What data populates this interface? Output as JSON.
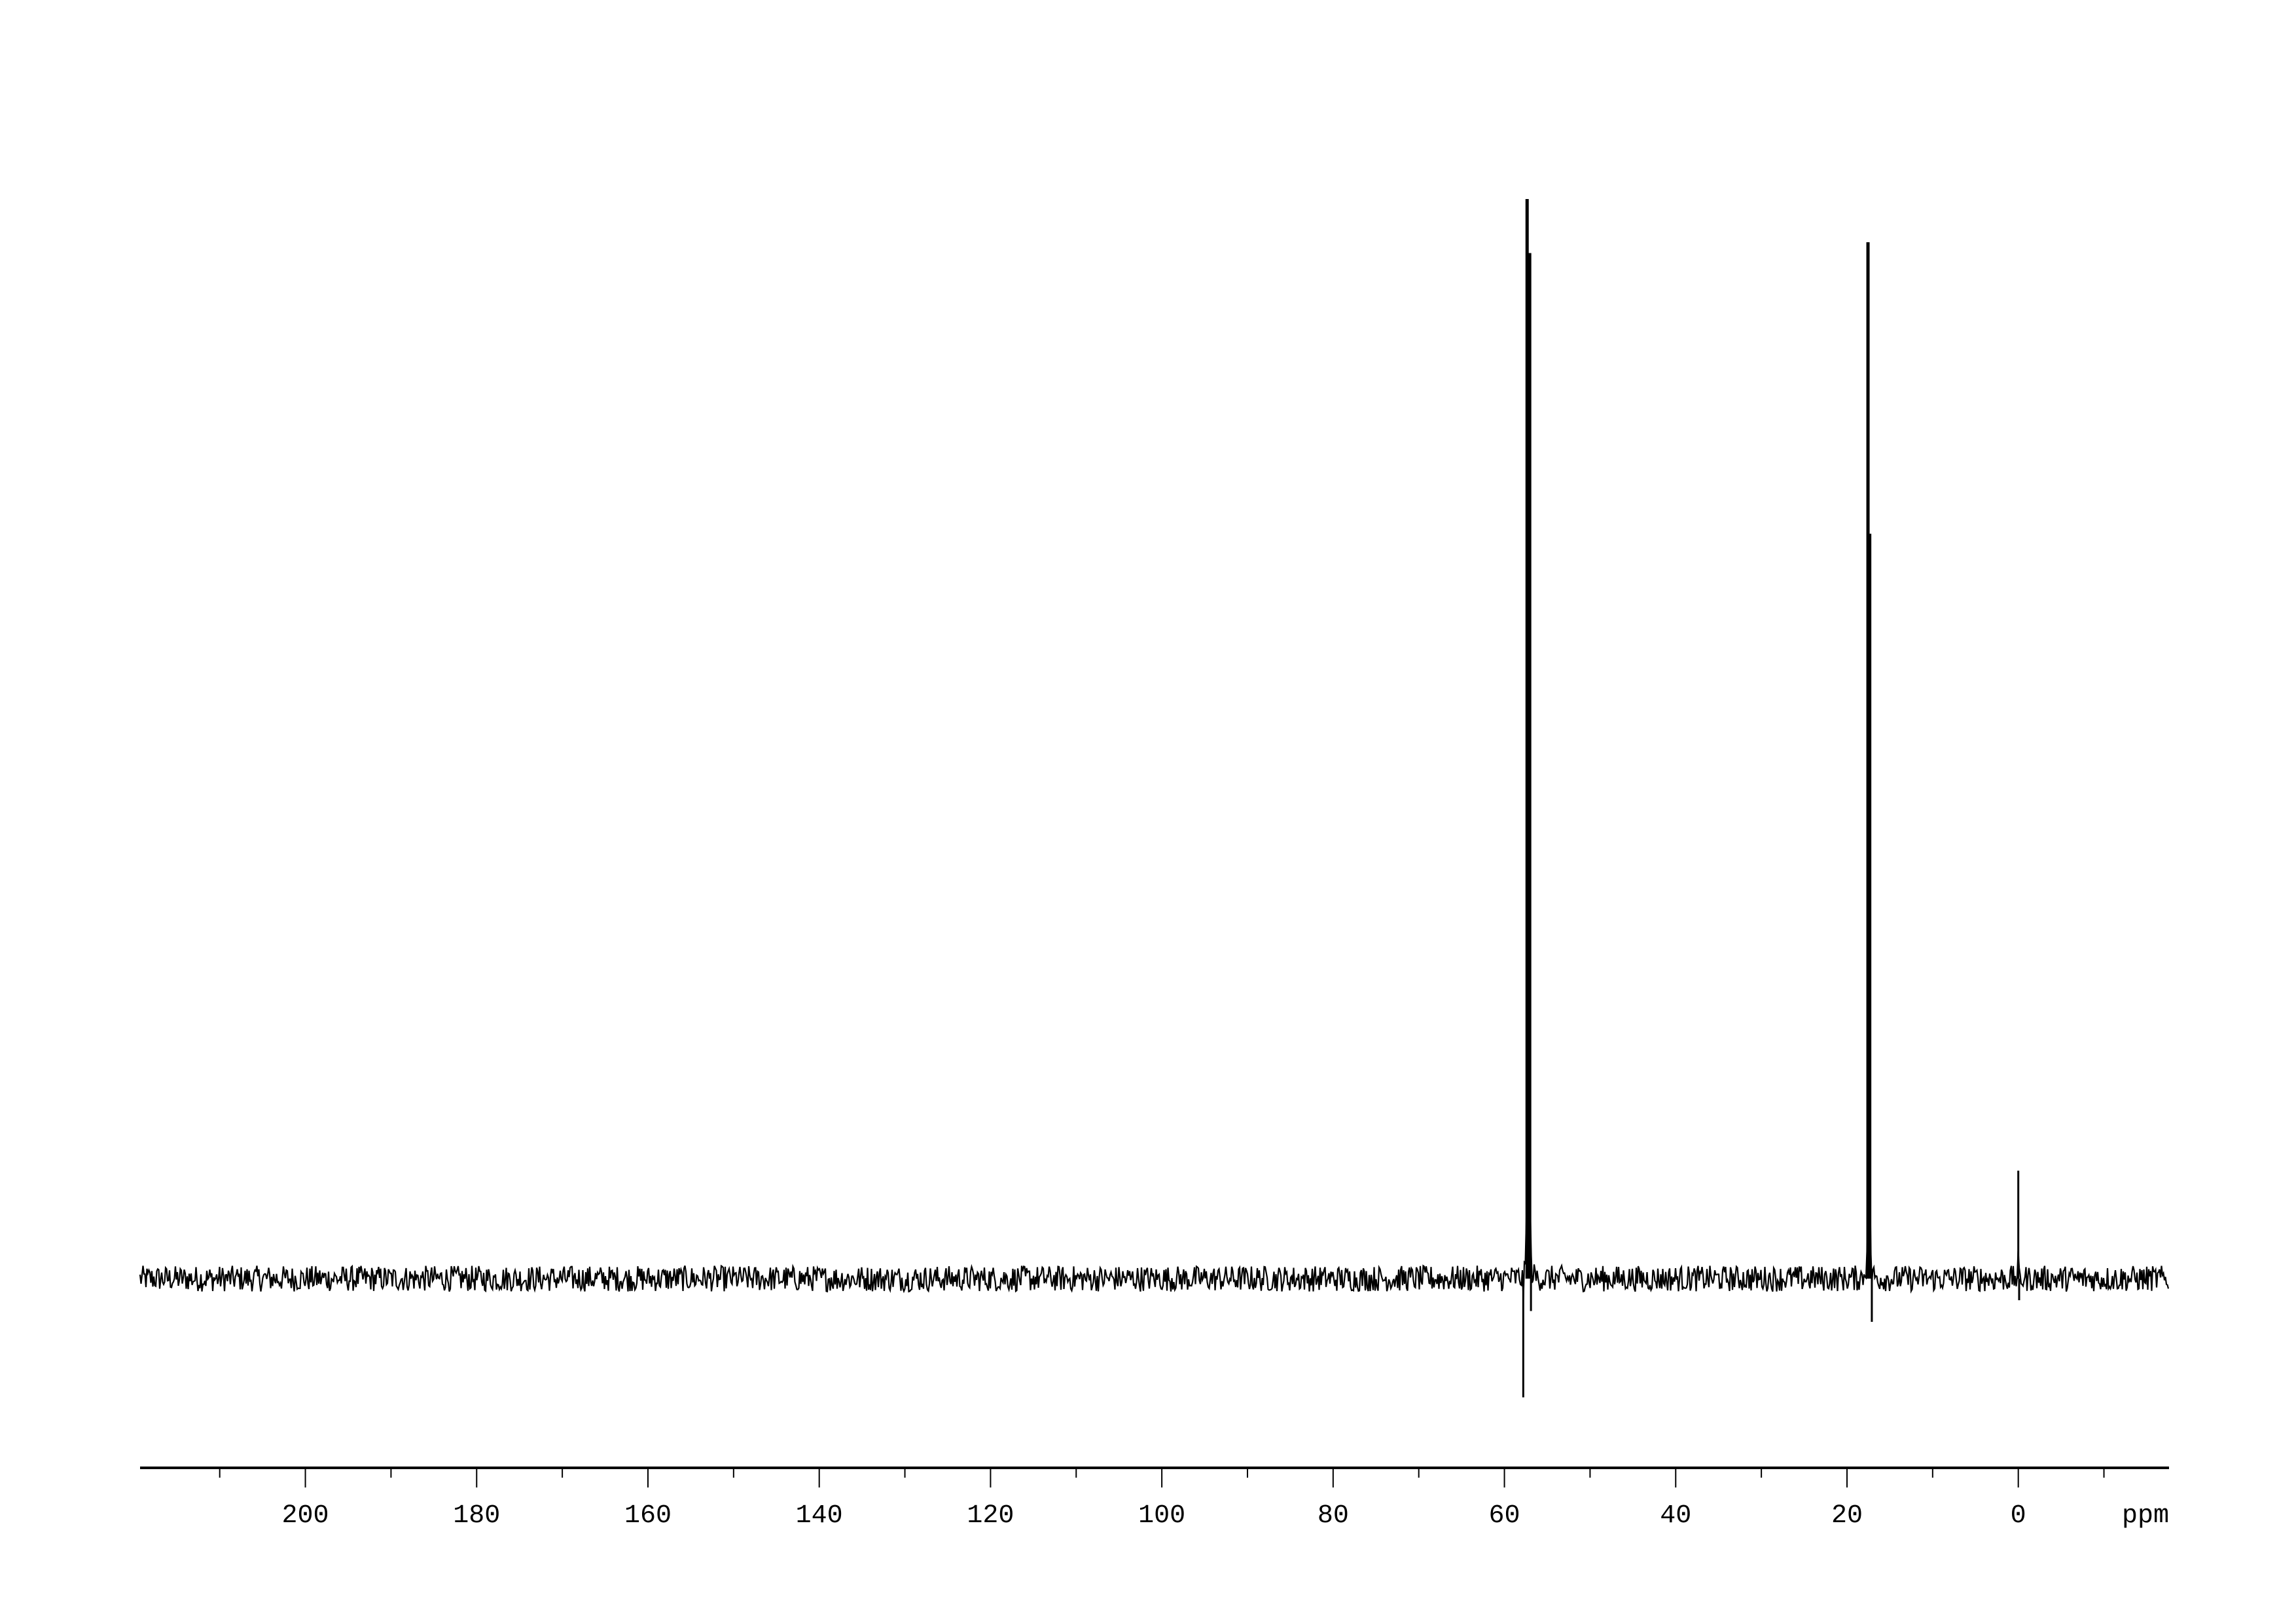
{
  "chart_data": {
    "type": "line",
    "title": "",
    "xlabel": "ppm",
    "ylabel": "",
    "x_reversed": true,
    "xlim": [
      219.3,
      -17.6
    ],
    "x_ticks_major": [
      200,
      180,
      160,
      140,
      120,
      100,
      80,
      60,
      40,
      20,
      0
    ],
    "x_ticks_minor": [
      210,
      190,
      170,
      150,
      130,
      110,
      90,
      70,
      50,
      30,
      10,
      -10
    ],
    "tick_labels": [
      "200",
      "180",
      "160",
      "140",
      "120",
      "100",
      "80",
      "60",
      "40",
      "20",
      "0"
    ],
    "grid": false,
    "line_color": "#000000",
    "baseline_noise_relative": 0.012,
    "peaks": [
      {
        "ppm": 57.35,
        "intensity": 1.0
      },
      {
        "ppm": 57.05,
        "intensity": 0.95
      },
      {
        "ppm": 17.55,
        "intensity": 0.96
      },
      {
        "ppm": 17.35,
        "intensity": 0.69
      },
      {
        "ppm": 0.0,
        "intensity": 0.1
      }
    ],
    "negative_artifacts": [
      {
        "ppm": 57.8,
        "intensity": -0.11
      },
      {
        "ppm": 56.9,
        "intensity": -0.03
      },
      {
        "ppm": 17.1,
        "intensity": -0.04
      },
      {
        "ppm": -0.1,
        "intensity": -0.02
      }
    ]
  }
}
